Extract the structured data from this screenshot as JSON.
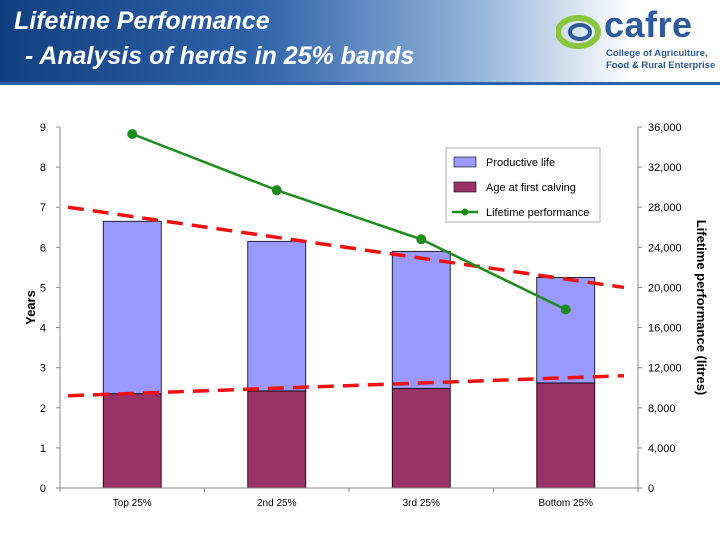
{
  "header": {
    "title_line1": "Lifetime Performance",
    "title_line2": " - Analysis of herds in 25% bands",
    "logo_word": "cafre",
    "logo_sub1": "College of Agriculture,",
    "logo_sub2": "Food & Rural Enterprise",
    "logo_colors": {
      "word": "#2d5a9c",
      "ring_outer": "#8cc63f",
      "ring_inner": "#2d5a9c"
    }
  },
  "chart_data": {
    "type": "bar",
    "stacked": true,
    "categories": [
      "Top 25%",
      "2nd 25%",
      "3rd 25%",
      "Bottom 25%"
    ],
    "series": [
      {
        "name": "Age at first calving",
        "type": "bar",
        "axis": "left",
        "color": "#993366",
        "values": [
          2.35,
          2.42,
          2.48,
          2.62
        ]
      },
      {
        "name": "Productive life",
        "type": "bar",
        "axis": "left",
        "color": "#9999ff",
        "values": [
          4.3,
          3.73,
          3.42,
          2.63
        ]
      },
      {
        "name": "Lifetime performance",
        "type": "line",
        "axis": "right",
        "color": "#1f8b1f",
        "values": [
          35300,
          29700,
          24800,
          17800
        ]
      }
    ],
    "trendlines": [
      {
        "of": "Productive life",
        "color": "#ee1111",
        "y_start": 7.0,
        "y_end": 5.0
      },
      {
        "of": "Age at first calving",
        "color": "#ee1111",
        "y_start": 2.3,
        "y_end": 2.8
      }
    ],
    "y_left": {
      "label": "Years",
      "range": [
        0,
        9
      ],
      "ticks": [
        "0",
        "1",
        "2",
        "3",
        "4",
        "5",
        "6",
        "7",
        "8",
        "9"
      ]
    },
    "y_right": {
      "label": "Lifetime performance (litres)",
      "range": [
        0,
        36000
      ],
      "ticks": [
        "0",
        "4,000",
        "8,000",
        "12,000",
        "16,000",
        "20,000",
        "24,000",
        "28,000",
        "32,000",
        "36,000"
      ]
    },
    "legend": {
      "position": "top-right",
      "entries": [
        "Productive life",
        "Age at first calving",
        "Lifetime performance"
      ]
    },
    "grid": false
  }
}
